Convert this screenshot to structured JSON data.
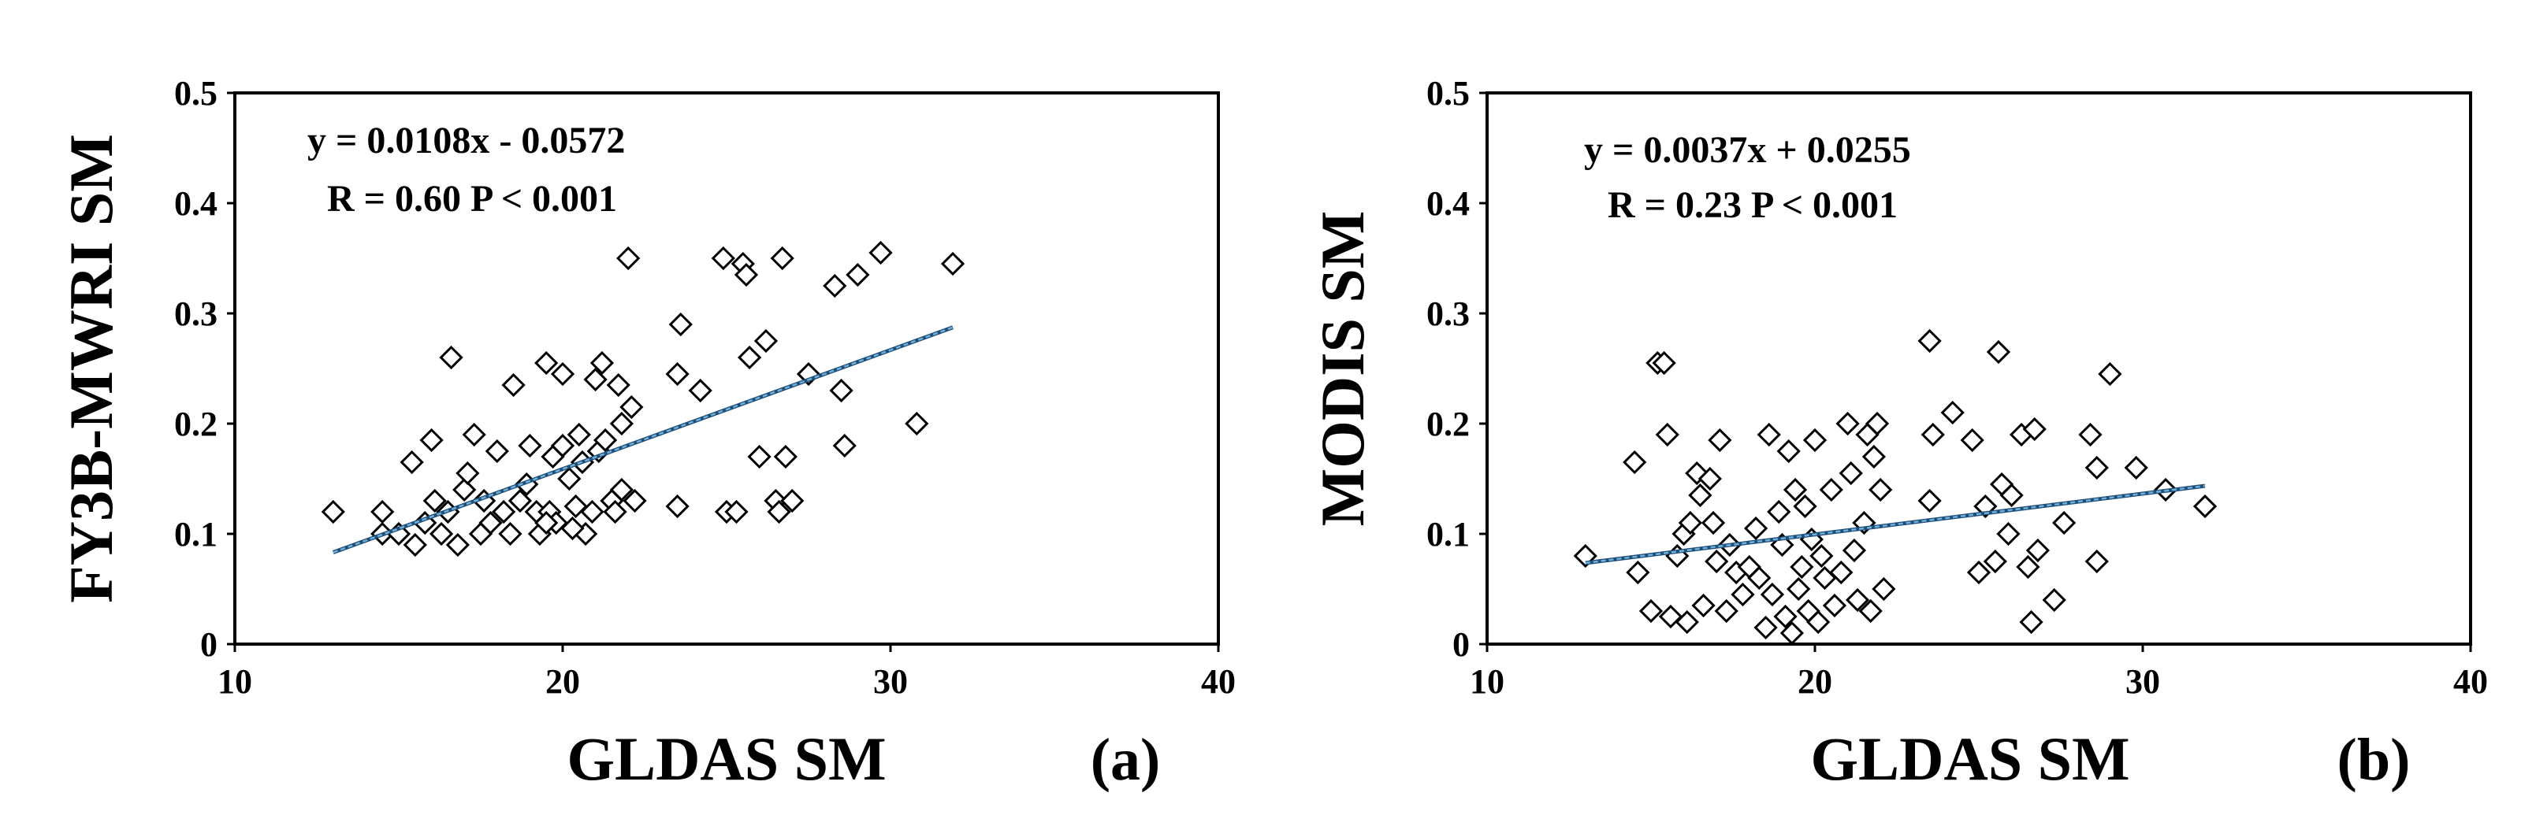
{
  "chart_data": [
    {
      "type": "scatter",
      "panel_label": "(a)",
      "xlabel": "GLDAS SM",
      "ylabel": "FY3B-MWRI SM",
      "xlim": [
        10,
        40
      ],
      "ylim": [
        0,
        0.5
      ],
      "x_ticks": [
        "10",
        "20",
        "30",
        "40"
      ],
      "y_ticks": [
        "0",
        "0.1",
        "0.2",
        "0.3",
        "0.4",
        "0.5"
      ],
      "equation": "y = 0.0108x - 0.0572",
      "stats": "R = 0.60 P < 0.001",
      "trend": {
        "slope": 0.0108,
        "intercept": -0.0572,
        "x_range": [
          13.0,
          31.9
        ]
      },
      "marker": "open-diamond",
      "trend_color": "#1f4e79",
      "points": [
        [
          13.0,
          0.12
        ],
        [
          14.5,
          0.12
        ],
        [
          14.5,
          0.1
        ],
        [
          15.0,
          0.1
        ],
        [
          15.4,
          0.165
        ],
        [
          15.5,
          0.09
        ],
        [
          15.8,
          0.11
        ],
        [
          16.0,
          0.185
        ],
        [
          16.1,
          0.13
        ],
        [
          16.3,
          0.1
        ],
        [
          16.5,
          0.12
        ],
        [
          16.6,
          0.26
        ],
        [
          16.8,
          0.09
        ],
        [
          17.0,
          0.14
        ],
        [
          17.1,
          0.155
        ],
        [
          17.3,
          0.19
        ],
        [
          17.5,
          0.1
        ],
        [
          17.6,
          0.13
        ],
        [
          17.8,
          0.11
        ],
        [
          18.0,
          0.175
        ],
        [
          18.2,
          0.12
        ],
        [
          18.4,
          0.1
        ],
        [
          18.5,
          0.235
        ],
        [
          18.7,
          0.13
        ],
        [
          18.9,
          0.145
        ],
        [
          19.0,
          0.18
        ],
        [
          19.2,
          0.12
        ],
        [
          19.3,
          0.1
        ],
        [
          19.5,
          0.255
        ],
        [
          19.6,
          0.12
        ],
        [
          19.7,
          0.17
        ],
        [
          19.8,
          0.11
        ],
        [
          20.0,
          0.245
        ],
        [
          20.0,
          0.18
        ],
        [
          20.2,
          0.15
        ],
        [
          20.4,
          0.125
        ],
        [
          20.5,
          0.19
        ],
        [
          20.6,
          0.165
        ],
        [
          20.7,
          0.1
        ],
        [
          20.9,
          0.12
        ],
        [
          21.0,
          0.24
        ],
        [
          21.1,
          0.175
        ],
        [
          21.2,
          0.255
        ],
        [
          21.3,
          0.185
        ],
        [
          21.5,
          0.13
        ],
        [
          21.6,
          0.12
        ],
        [
          21.7,
          0.235
        ],
        [
          21.8,
          0.14
        ],
        [
          21.8,
          0.2
        ],
        [
          22.0,
          0.35
        ],
        [
          22.1,
          0.215
        ],
        [
          22.2,
          0.13
        ],
        [
          23.5,
          0.245
        ],
        [
          23.5,
          0.125
        ],
        [
          23.6,
          0.29
        ],
        [
          24.2,
          0.23
        ],
        [
          24.9,
          0.35
        ],
        [
          25.0,
          0.12
        ],
        [
          25.3,
          0.12
        ],
        [
          25.5,
          0.345
        ],
        [
          25.6,
          0.335
        ],
        [
          25.7,
          0.26
        ],
        [
          26.0,
          0.17
        ],
        [
          26.2,
          0.275
        ],
        [
          26.5,
          0.13
        ],
        [
          26.6,
          0.12
        ],
        [
          26.7,
          0.35
        ],
        [
          27.0,
          0.13
        ],
        [
          27.5,
          0.245
        ],
        [
          28.3,
          0.325
        ],
        [
          28.6,
          0.18
        ],
        [
          28.5,
          0.23
        ],
        [
          29.0,
          0.335
        ],
        [
          29.7,
          0.355
        ],
        [
          30.8,
          0.2
        ],
        [
          31.9,
          0.345
        ],
        [
          26.8,
          0.17
        ],
        [
          19.5,
          0.11
        ],
        [
          20.3,
          0.105
        ]
      ]
    },
    {
      "type": "scatter",
      "panel_label": "(b)",
      "xlabel": "GLDAS SM",
      "ylabel": "MODIS SM",
      "xlim": [
        10,
        40
      ],
      "ylim": [
        0,
        0.5
      ],
      "x_ticks": [
        "10",
        "20",
        "30",
        "40"
      ],
      "y_ticks": [
        "0",
        "0.1",
        "0.2",
        "0.3",
        "0.4",
        "0.5"
      ],
      "equation": "y = 0.0037x + 0.0255",
      "stats": "R = 0.23 P < 0.001",
      "trend": {
        "slope": 0.0037,
        "intercept": 0.0255,
        "x_range": [
          13.0,
          31.9
        ]
      },
      "marker": "open-diamond",
      "trend_color": "#1f4e79",
      "points": [
        [
          13.0,
          0.08
        ],
        [
          14.5,
          0.165
        ],
        [
          14.6,
          0.065
        ],
        [
          15.0,
          0.03
        ],
        [
          15.2,
          0.255
        ],
        [
          15.4,
          0.255
        ],
        [
          15.5,
          0.19
        ],
        [
          15.6,
          0.025
        ],
        [
          15.8,
          0.08
        ],
        [
          16.0,
          0.1
        ],
        [
          16.1,
          0.02
        ],
        [
          16.2,
          0.11
        ],
        [
          16.4,
          0.155
        ],
        [
          16.5,
          0.135
        ],
        [
          16.6,
          0.035
        ],
        [
          16.8,
          0.15
        ],
        [
          16.9,
          0.11
        ],
        [
          17.0,
          0.075
        ],
        [
          17.1,
          0.185
        ],
        [
          17.3,
          0.03
        ],
        [
          17.4,
          0.09
        ],
        [
          17.6,
          0.065
        ],
        [
          17.8,
          0.045
        ],
        [
          18.0,
          0.07
        ],
        [
          18.2,
          0.105
        ],
        [
          18.3,
          0.06
        ],
        [
          18.5,
          0.015
        ],
        [
          18.6,
          0.19
        ],
        [
          18.7,
          0.045
        ],
        [
          18.9,
          0.12
        ],
        [
          19.0,
          0.09
        ],
        [
          19.1,
          0.025
        ],
        [
          19.2,
          0.175
        ],
        [
          19.3,
          0.01
        ],
        [
          19.4,
          0.14
        ],
        [
          19.5,
          0.05
        ],
        [
          19.6,
          0.07
        ],
        [
          19.7,
          0.125
        ],
        [
          19.8,
          0.03
        ],
        [
          19.9,
          0.095
        ],
        [
          20.0,
          0.185
        ],
        [
          20.1,
          0.02
        ],
        [
          20.2,
          0.08
        ],
        [
          20.3,
          0.06
        ],
        [
          20.5,
          0.14
        ],
        [
          20.6,
          0.035
        ],
        [
          20.8,
          0.065
        ],
        [
          21.0,
          0.2
        ],
        [
          21.1,
          0.155
        ],
        [
          21.2,
          0.085
        ],
        [
          21.3,
          0.04
        ],
        [
          21.5,
          0.11
        ],
        [
          21.6,
          0.19
        ],
        [
          21.7,
          0.03
        ],
        [
          21.8,
          0.17
        ],
        [
          21.9,
          0.2
        ],
        [
          22.0,
          0.14
        ],
        [
          22.1,
          0.05
        ],
        [
          23.5,
          0.275
        ],
        [
          23.6,
          0.19
        ],
        [
          23.5,
          0.13
        ],
        [
          24.2,
          0.21
        ],
        [
          24.8,
          0.185
        ],
        [
          25.0,
          0.065
        ],
        [
          25.2,
          0.125
        ],
        [
          25.5,
          0.075
        ],
        [
          25.6,
          0.265
        ],
        [
          25.7,
          0.145
        ],
        [
          25.9,
          0.1
        ],
        [
          26.0,
          0.135
        ],
        [
          26.3,
          0.19
        ],
        [
          26.5,
          0.07
        ],
        [
          26.7,
          0.195
        ],
        [
          26.6,
          0.02
        ],
        [
          26.8,
          0.085
        ],
        [
          27.3,
          0.04
        ],
        [
          27.6,
          0.11
        ],
        [
          28.4,
          0.19
        ],
        [
          28.6,
          0.16
        ],
        [
          28.6,
          0.075
        ],
        [
          29.0,
          0.245
        ],
        [
          29.8,
          0.16
        ],
        [
          30.7,
          0.14
        ],
        [
          31.9,
          0.125
        ]
      ]
    }
  ]
}
